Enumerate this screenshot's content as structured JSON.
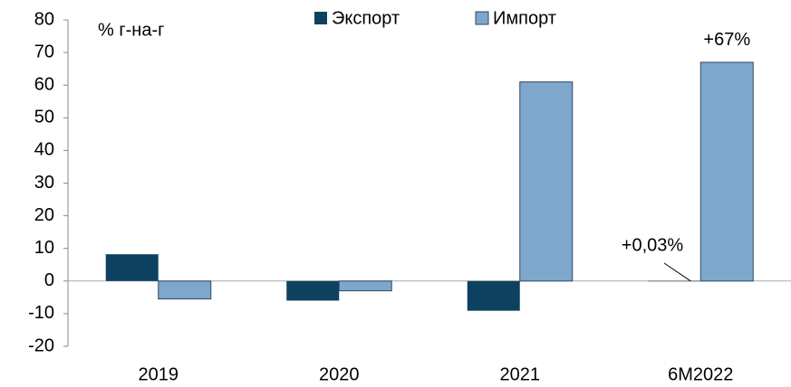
{
  "chart_data": {
    "type": "bar",
    "subtitle": "% г-на-г",
    "categories": [
      "2019",
      "2020",
      "2021",
      "6M2022"
    ],
    "series": [
      {
        "name": "Экспорт",
        "color": "#0e4160",
        "values": [
          8.2,
          -6,
          -9.1,
          0.03
        ],
        "value_labels": [
          null,
          null,
          null,
          "+0,03%"
        ]
      },
      {
        "name": "Импорт",
        "color": "#7fa7cb",
        "values": [
          -5.5,
          -3,
          61,
          67
        ],
        "value_labels": [
          null,
          null,
          null,
          "+67%"
        ]
      }
    ],
    "ylim": [
      -20,
      80
    ],
    "yticks": [
      -20,
      -10,
      0,
      10,
      20,
      30,
      40,
      50,
      60,
      70,
      80
    ],
    "legend": "top"
  }
}
